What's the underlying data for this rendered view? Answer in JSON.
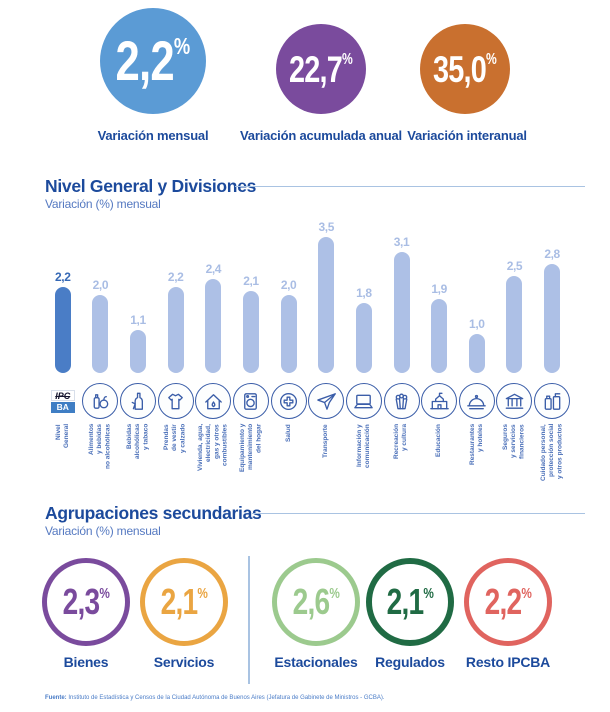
{
  "summary": {
    "circles": [
      {
        "value": "2,2",
        "unit": "%",
        "label": "Variación mensual",
        "color": "#5b9bd5"
      },
      {
        "value": "22,7",
        "unit": "%",
        "label": "Variación acumulada anual",
        "color": "#7a4b9d"
      },
      {
        "value": "35,0",
        "unit": "%",
        "label": "Variación interanual",
        "color": "#c9702f"
      }
    ]
  },
  "divisions_section": {
    "title": "Nivel General y Divisiones",
    "subtitle": "Variación (%) mensual"
  },
  "chart_data": {
    "type": "bar",
    "title": "Nivel General y Divisiones",
    "subtitle": "Variación (%) mensual",
    "ylabel": "Variación (%) mensual",
    "ylim": [
      0,
      4
    ],
    "grid": false,
    "legend": "none",
    "categories": [
      "Nivel\nGeneral",
      "Alimentos\ny bebidas\nno alcohólicas",
      "Bebidas\nalcohólicas\ny tabaco",
      "Prendas\nde vestir\ny calzado",
      "Vivienda, agua,\nelectricidad,\ngas y otros\ncombustibles",
      "Equipamiento y\nmantenimiento\ndel hogar",
      "Salud",
      "Transporte",
      "Información y\ncomunicación",
      "Recreación\ny cultura",
      "Educación",
      "Restaurantes\ny hoteles",
      "Seguros\ny servicios\nfinancieros",
      "Cuidado personal,\nprotección social\ny otros productos"
    ],
    "values": [
      2.2,
      2.0,
      1.1,
      2.2,
      2.4,
      2.1,
      2.0,
      3.5,
      1.8,
      3.1,
      1.9,
      1.0,
      2.5,
      2.8
    ],
    "value_labels": [
      "2,2",
      "2,0",
      "1,1",
      "2,2",
      "2,4",
      "2,1",
      "2,0",
      "3,5",
      "1,8",
      "3,1",
      "1,9",
      "1,0",
      "2,5",
      "2,8"
    ],
    "icons": [
      "ipcba-logo",
      "food",
      "alcohol",
      "clothing",
      "housing",
      "equipment",
      "health",
      "transport",
      "communication",
      "recreation",
      "education",
      "restaurants",
      "insurance",
      "personalcare"
    ],
    "bar_color_general": "#4a7dc6",
    "bar_color_divisions": "#adc0e6",
    "logo": {
      "line1": "IPC",
      "line2": "BA"
    }
  },
  "secondary_section": {
    "title": "Agrupaciones secundarias",
    "subtitle": "Variación (%) mensual",
    "groups": [
      {
        "value": "2,3",
        "unit": "%",
        "label": "Bienes",
        "color": "#7a4b9d"
      },
      {
        "value": "2,1",
        "unit": "%",
        "label": "Servicios",
        "color": "#eaa542"
      },
      {
        "value": "2,6",
        "unit": "%",
        "label": "Estacionales",
        "color": "#9cca8e"
      },
      {
        "value": "2,1",
        "unit": "%",
        "label": "Regulados",
        "color": "#206b44"
      },
      {
        "value": "2,2",
        "unit": "%",
        "label": "Resto IPCBA",
        "color": "#e0645f"
      }
    ]
  },
  "footer": {
    "label": "Fuente:",
    "text": " Instituto de Estadística y Censos de la Ciudad Autónoma de Buenos Aires (Jefatura de Gabinete de Ministros - GCBA)."
  }
}
